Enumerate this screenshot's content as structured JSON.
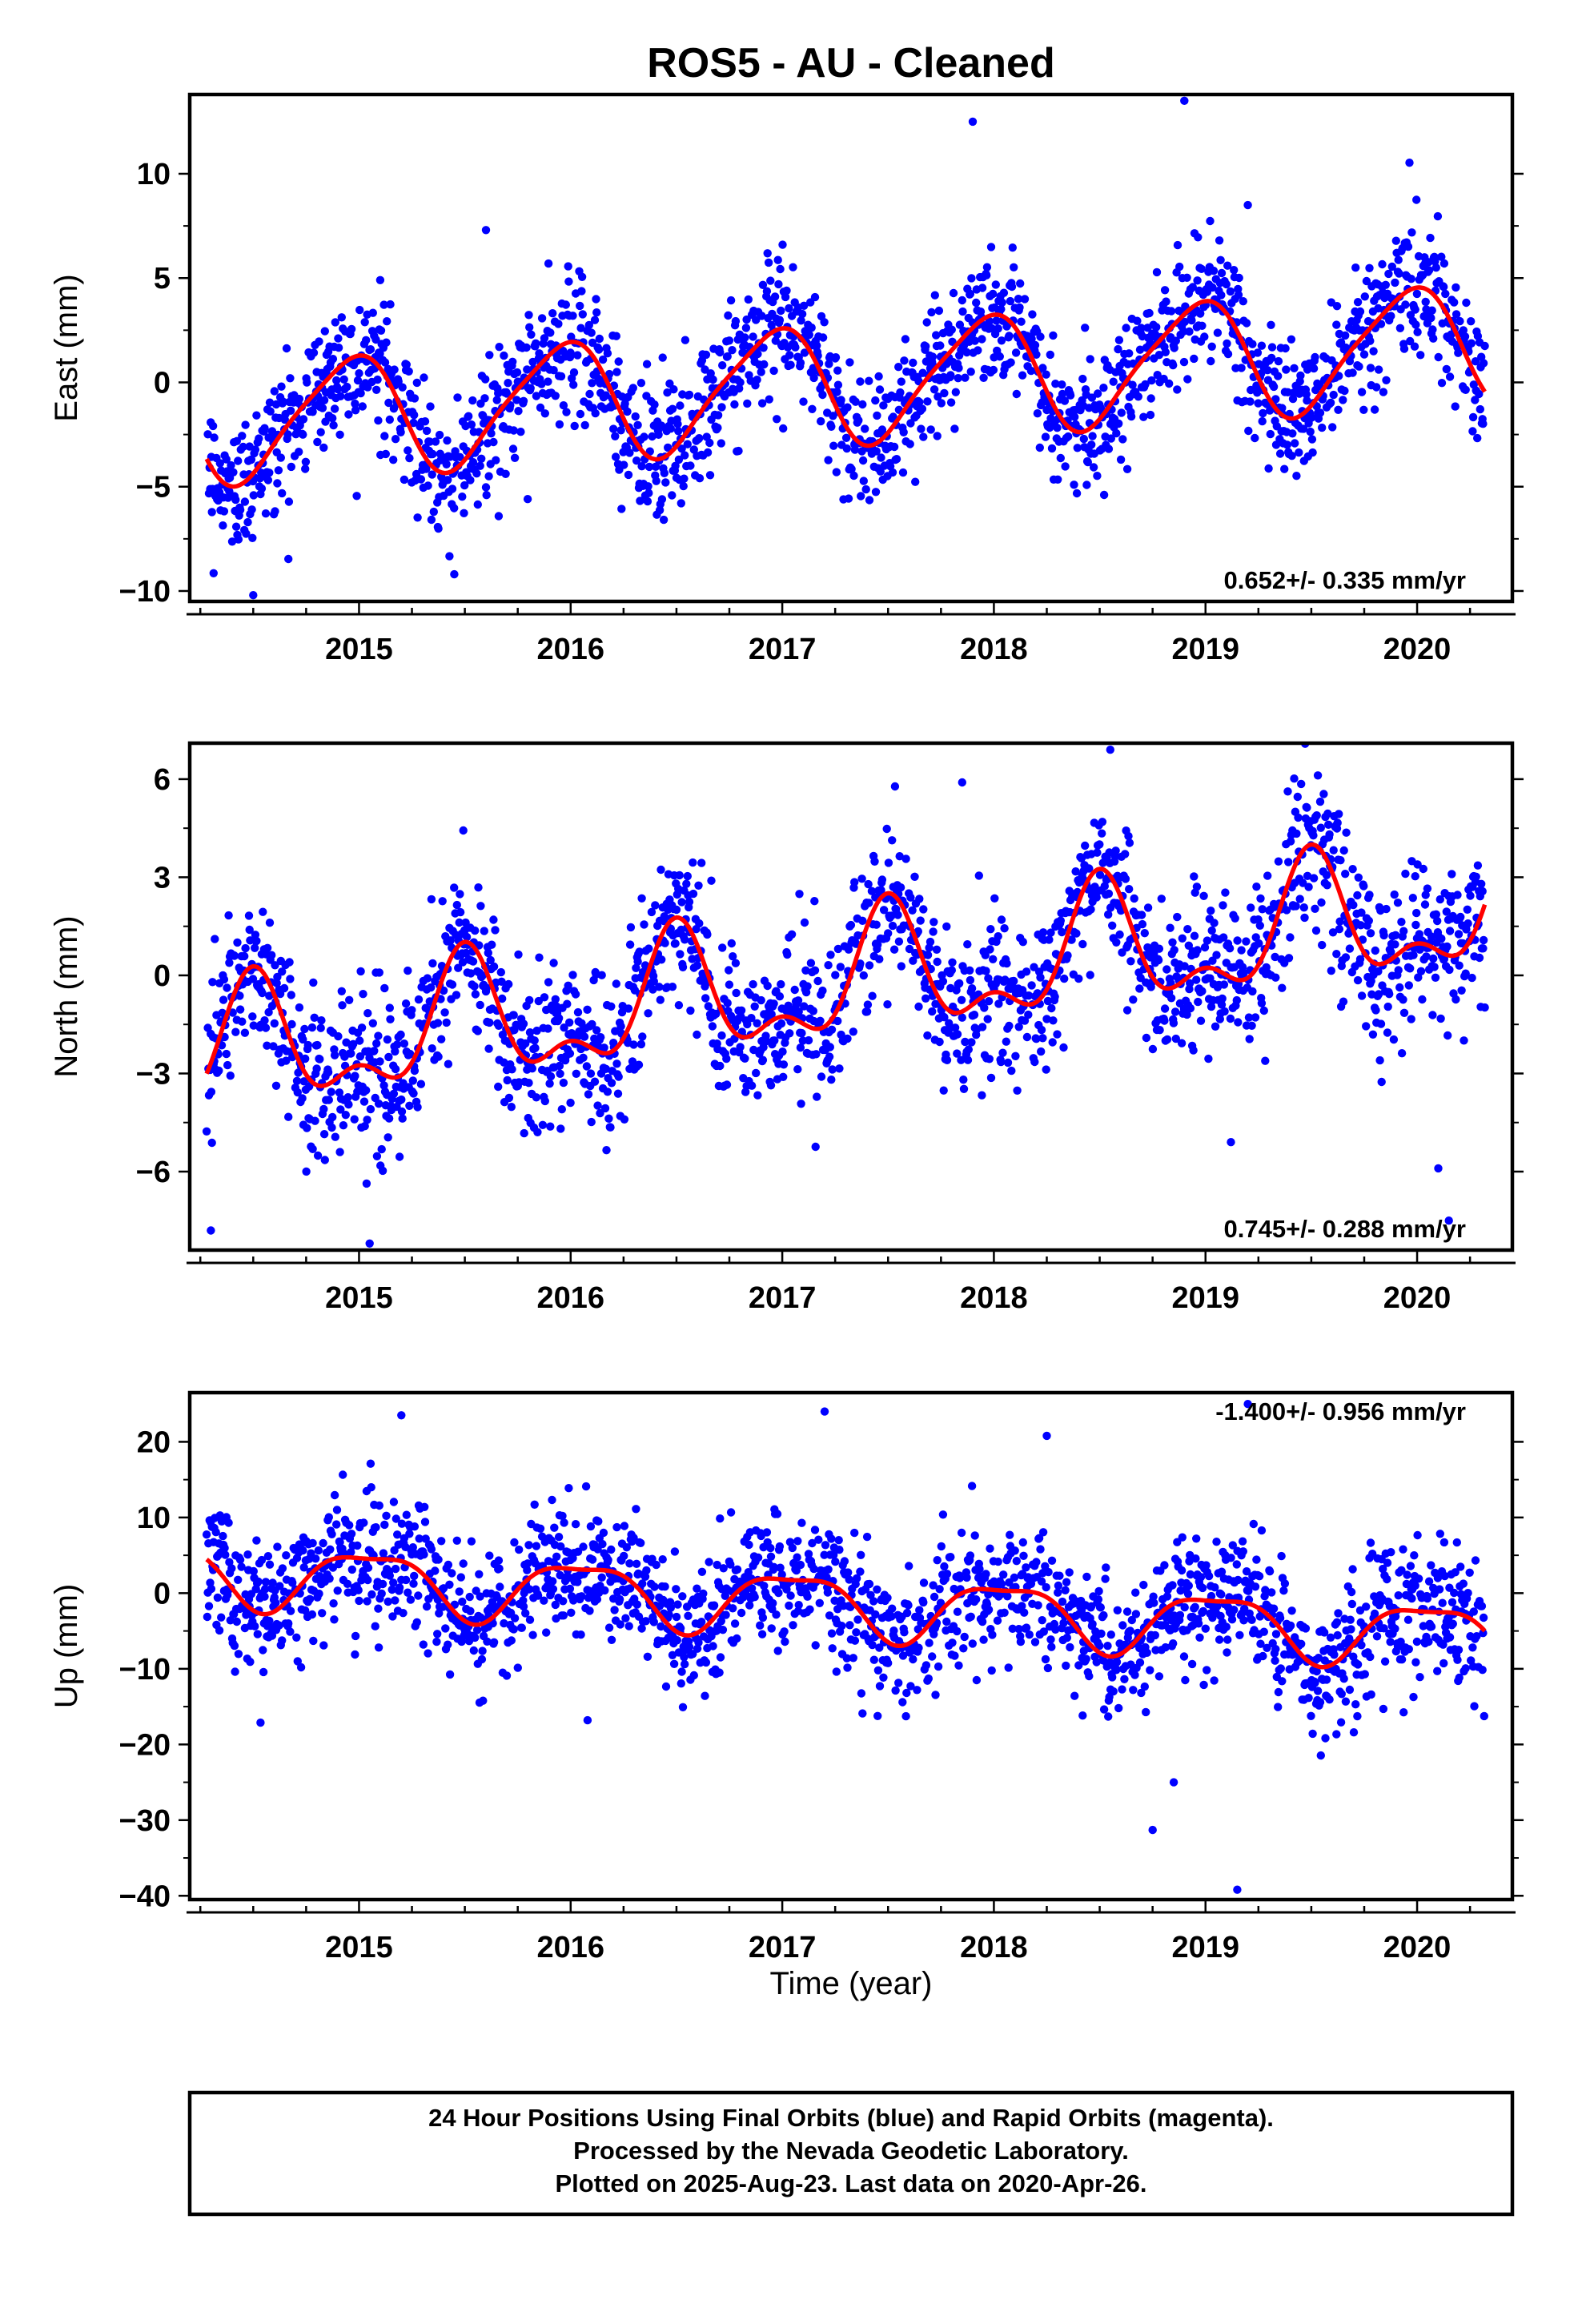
{
  "chart_data": {
    "type": "scatter",
    "title": "ROS5  - AU - Cleaned",
    "xlabel": "Time (year)",
    "x_ticks": [
      "2015",
      "2016",
      "2017",
      "2018",
      "2019",
      "2020"
    ],
    "xlim": [
      2014.2,
      2020.45
    ],
    "point_color": "#0000ff",
    "fit_color": "#ff0000",
    "panels": [
      {
        "name": "east",
        "ylabel": "East (mm)",
        "ylim": [
          -10.5,
          13.8
        ],
        "y_ticks": [
          -10,
          -5,
          0,
          5,
          10
        ],
        "y_tick_labels": [
          "−10",
          "−5",
          "0",
          "5",
          "10"
        ],
        "rate_text": "0.652+/- 0.335 mm/yr",
        "rate_position": "bottom-right",
        "model": {
          "offset": 0.0,
          "slope": 0.652,
          "ref_year": 2017.35,
          "amp": 2.8,
          "phase_peak": 2014.95,
          "amp2": 0.5,
          "phase2_peak": 2015.1
        },
        "noise_sd": 1.6,
        "outliers": [
          [
            2014.5,
            -10.2
          ],
          [
            2017.9,
            12.5
          ],
          [
            2018.9,
            13.5
          ],
          [
            2015.6,
            7.3
          ],
          [
            2019.2,
            8.5
          ],
          [
            2015.1,
            4.9
          ],
          [
            2015.45,
            -9.2
          ]
        ]
      },
      {
        "name": "north",
        "ylabel": "North (mm)",
        "ylim": [
          -8.4,
          7.1
        ],
        "y_ticks": [
          -6,
          -3,
          0,
          3,
          6
        ],
        "y_tick_labels": [
          "−6",
          "−3",
          "0",
          "3",
          "6"
        ],
        "rate_text": "0.745+/- 0.288 mm/yr",
        "rate_position": "bottom-right",
        "model": {
          "offset": -0.2,
          "slope": 0.745,
          "ref_year": 2017.35,
          "amp": 1.7,
          "phase_peak": 2014.5,
          "amp2": 0.9,
          "phase2_peak": 2014.5
        },
        "noise_sd": 1.2,
        "outliers": [
          [
            2014.3,
            -7.8
          ],
          [
            2015.05,
            -8.2
          ],
          [
            2018.55,
            6.9
          ],
          [
            2017.85,
            5.9
          ],
          [
            2019.12,
            -5.1
          ],
          [
            2020.15,
            -7.5
          ],
          [
            2020.1,
            -5.9
          ]
        ]
      },
      {
        "name": "up",
        "ylabel": "Up (mm)",
        "ylim": [
          -40.5,
          26.5
        ],
        "y_ticks": [
          -40,
          -30,
          -20,
          -10,
          0,
          10,
          20
        ],
        "y_tick_labels": [
          "−40",
          "−30",
          "−20",
          "−10",
          "0",
          "10",
          "20"
        ],
        "rate_text": "-1.400+/- 0.956 mm/yr",
        "rate_position": "top-right",
        "model": {
          "offset": -1.5,
          "slope": -1.4,
          "ref_year": 2017.35,
          "amp": 4.0,
          "phase_peak": 2015.05,
          "amp2": 1.2,
          "phase2_peak": 2015.3
        },
        "noise_sd": 4.2,
        "outliers": [
          [
            2019.15,
            -39.2
          ],
          [
            2018.75,
            -31.3
          ],
          [
            2019.2,
            25.0
          ],
          [
            2015.2,
            23.5
          ],
          [
            2017.2,
            24.0
          ],
          [
            2016.08,
            -16.8
          ],
          [
            2018.85,
            -25.0
          ],
          [
            2018.25,
            20.8
          ]
        ]
      }
    ]
  },
  "footer": {
    "line1": "24 Hour Positions Using Final Orbits (blue) and Rapid Orbits (magenta).",
    "line2": "Processed by the Nevada Geodetic Laboratory.",
    "line3": "Plotted on 2025-Aug-23. Last data on 2020-Apr-26."
  }
}
